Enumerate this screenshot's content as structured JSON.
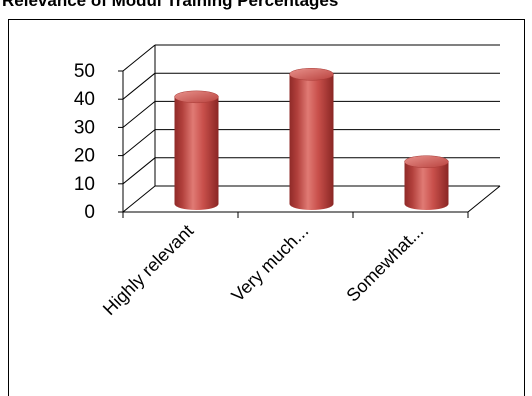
{
  "chart_data": {
    "type": "bar",
    "title": "Relevance of Modul Training Percentages",
    "categories": [
      "Highly relevant",
      "Very much...",
      "Somewhat..."
    ],
    "values": [
      38,
      46,
      15
    ],
    "ylim": [
      0,
      50
    ],
    "yticks": [
      "0",
      "10",
      "20",
      "30",
      "40",
      "50"
    ],
    "grid": true,
    "legend": "none",
    "bar_color": "#c0504d"
  }
}
